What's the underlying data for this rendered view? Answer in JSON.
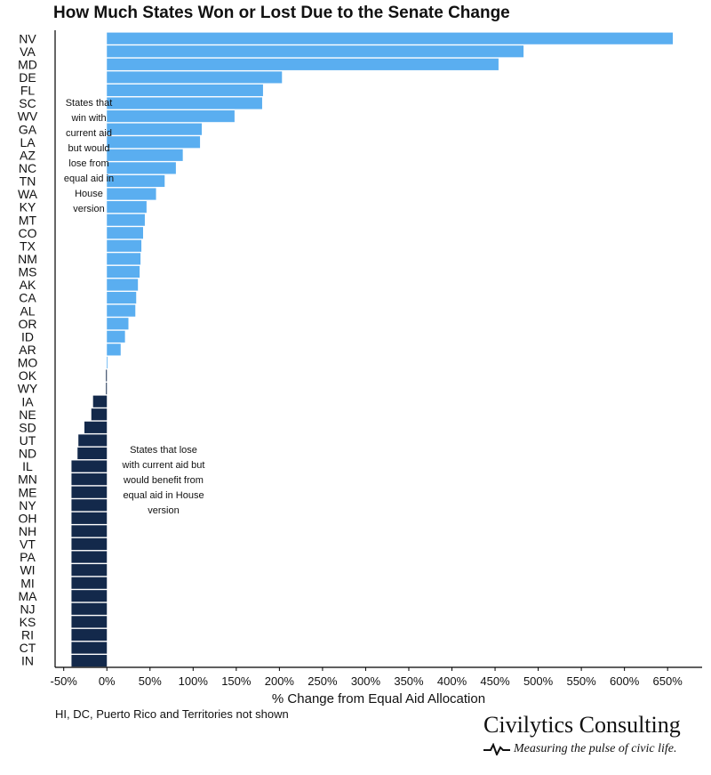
{
  "title": "How Much States Won or Lost Due to the Senate Change",
  "footnote": "HI, DC, Puerto Rico and Territories not shown",
  "annotations": {
    "top": "States that win with current aid but would lose from equal aid in House version",
    "bottom": "States that lose with current aid but would benefit from equal aid in House version"
  },
  "brand": {
    "name": "Civilytics Consulting",
    "tagline": "Measuring the pulse of civic life."
  },
  "colors": {
    "positive": "#5aaef0",
    "negative": "#13294b",
    "axis": "#000000"
  },
  "chart_data": {
    "type": "bar",
    "orientation": "horizontal",
    "title": "How Much States Won or Lost Due to the Senate Change",
    "xlabel": "% Change from Equal Aid Allocation",
    "ylabel": "",
    "xlim": [
      -60,
      690
    ],
    "xticks": [
      -50,
      0,
      50,
      100,
      150,
      200,
      250,
      300,
      350,
      400,
      450,
      500,
      550,
      600,
      650
    ],
    "xtick_labels": [
      "-50%",
      "0%",
      "50%",
      "100%",
      "150%",
      "200%",
      "250%",
      "300%",
      "350%",
      "400%",
      "450%",
      "500%",
      "550%",
      "600%",
      "650%"
    ],
    "grid": false,
    "categories": [
      "NV",
      "VA",
      "MD",
      "DE",
      "FL",
      "SC",
      "WV",
      "GA",
      "LA",
      "AZ",
      "NC",
      "TN",
      "WA",
      "KY",
      "MT",
      "CO",
      "TX",
      "NM",
      "MS",
      "AK",
      "CA",
      "AL",
      "OR",
      "ID",
      "AR",
      "MO",
      "OK",
      "WY",
      "IA",
      "NE",
      "SD",
      "UT",
      "ND",
      "IL",
      "MN",
      "ME",
      "NY",
      "OH",
      "NH",
      "VT",
      "PA",
      "WI",
      "MI",
      "MA",
      "NJ",
      "KS",
      "RI",
      "CT",
      "IN"
    ],
    "values": [
      656,
      483,
      454,
      203,
      181,
      180,
      148,
      110,
      108,
      88,
      80,
      67,
      57,
      46,
      44,
      42,
      40,
      39,
      38,
      36,
      34,
      33,
      25,
      21,
      16,
      0,
      -1,
      -1,
      -16,
      -18,
      -26,
      -33,
      -34,
      -41,
      -41,
      -41,
      -41,
      -41,
      -41,
      -41,
      -41,
      -41,
      -41,
      -41,
      -41,
      -41,
      -41,
      -41,
      -41
    ]
  }
}
